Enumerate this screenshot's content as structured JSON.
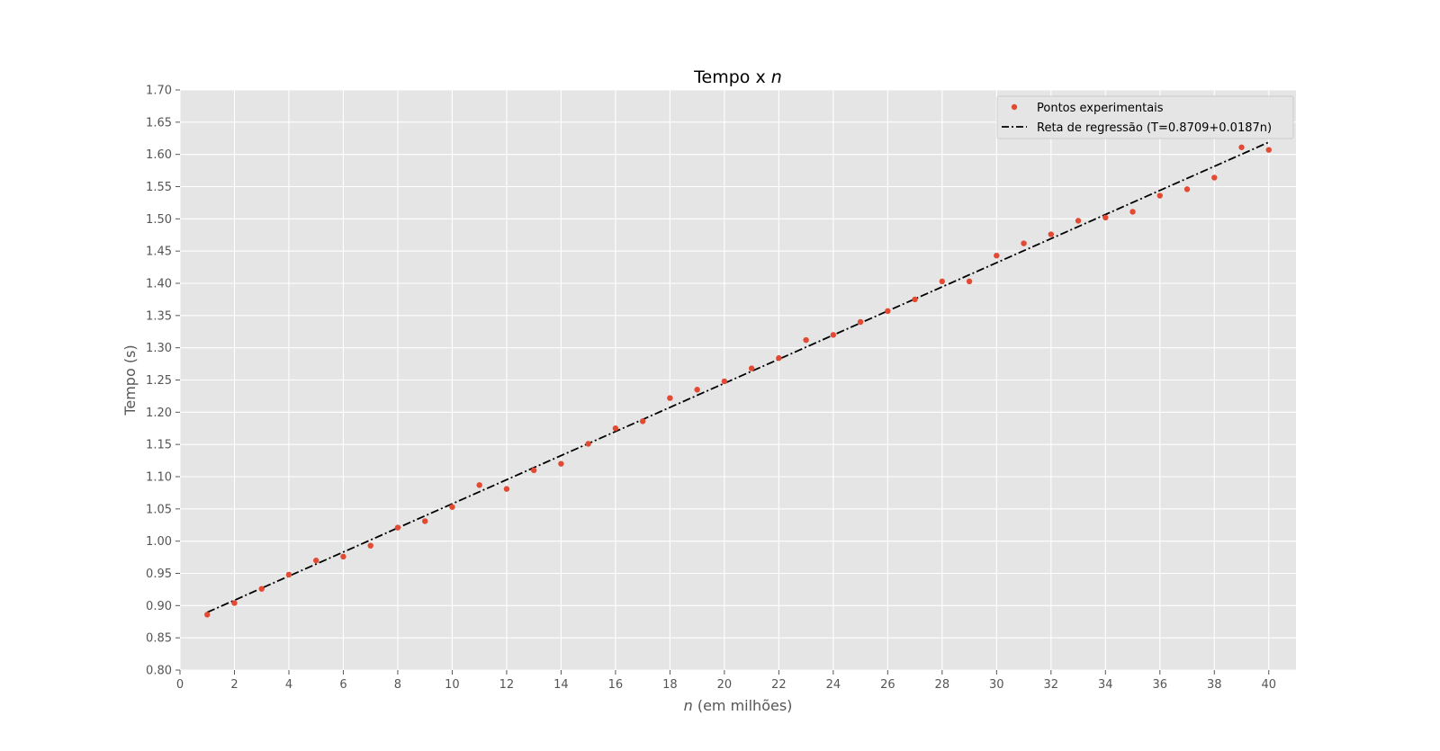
{
  "chart_data": {
    "type": "scatter",
    "title": "Tempo x",
    "title_var": "n",
    "xlabel_var": "n",
    "xlabel": " (em milhões)",
    "ylabel": "Tempo (s)",
    "xlim": [
      0,
      41
    ],
    "ylim": [
      0.8,
      1.7
    ],
    "xticks": [
      "0",
      "2",
      "4",
      "6",
      "8",
      "10",
      "12",
      "14",
      "16",
      "18",
      "20",
      "22",
      "24",
      "26",
      "28",
      "30",
      "32",
      "34",
      "36",
      "38",
      "40"
    ],
    "yticks": [
      "0.80",
      "0.85",
      "0.90",
      "0.95",
      "1.00",
      "1.05",
      "1.10",
      "1.15",
      "1.20",
      "1.25",
      "1.30",
      "1.35",
      "1.40",
      "1.45",
      "1.50",
      "1.55",
      "1.60",
      "1.65",
      "1.70"
    ],
    "grid": true,
    "legend_position": "top-right",
    "colors": {
      "points": "#e24a33",
      "line": "#000000",
      "background": "#e5e5e5",
      "grid": "#ffffff"
    },
    "series": [
      {
        "name": "Pontos experimentais",
        "kind": "scatter",
        "x": [
          1,
          2,
          3,
          4,
          5,
          6,
          7,
          8,
          9,
          10,
          11,
          12,
          13,
          14,
          15,
          16,
          17,
          18,
          19,
          20,
          21,
          22,
          23,
          24,
          25,
          26,
          27,
          28,
          29,
          30,
          31,
          32,
          33,
          34,
          35,
          36,
          37,
          38,
          39,
          40
        ],
        "y": [
          0.886,
          0.904,
          0.926,
          0.948,
          0.97,
          0.976,
          0.993,
          1.021,
          1.031,
          1.053,
          1.087,
          1.081,
          1.11,
          1.12,
          1.151,
          1.175,
          1.186,
          1.222,
          1.235,
          1.248,
          1.268,
          1.284,
          1.312,
          1.32,
          1.34,
          1.357,
          1.375,
          1.403,
          1.403,
          1.443,
          1.462,
          1.476,
          1.497,
          1.502,
          1.511,
          1.536,
          1.546,
          1.564,
          1.611,
          1.607
        ]
      },
      {
        "name": "Reta de regressão (T=0.8709+0.0187n)",
        "kind": "line",
        "intercept": 0.8709,
        "slope": 0.0187,
        "x_range": [
          1,
          40
        ]
      }
    ]
  }
}
